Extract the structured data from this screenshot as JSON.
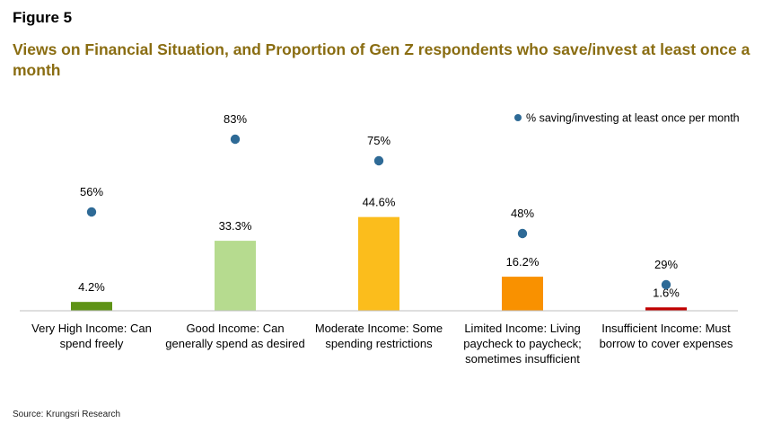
{
  "figure_label": "Figure 5",
  "title": "Views on Financial Situation, and Proportion of Gen Z respondents who save/invest at least once a month",
  "source": "Source: Krungsri Research",
  "colors": {
    "title": "#8a6d12",
    "dot": "#2e6a96",
    "baseline": "#bfbfbf"
  },
  "chart_data": {
    "type": "bar",
    "categories": [
      "Very High Income: Can spend freely",
      "Good Income: Can generally spend as desired",
      "Moderate Income: Some spending restrictions",
      "Limited Income: Living paycheck to paycheck; sometimes insufficient",
      "Insufficient Income: Must borrow to cover expenses"
    ],
    "category_lines": [
      [
        "Very High Income: Can",
        "spend freely"
      ],
      [
        "Good Income: Can",
        "generally spend as desired"
      ],
      [
        "Moderate Income: Some",
        "spending restrictions"
      ],
      [
        "Limited Income: Living",
        "paycheck to paycheck;",
        "sometimes insufficient"
      ],
      [
        "Insufficient Income: Must",
        "borrow to cover expenses"
      ]
    ],
    "series": [
      {
        "type": "bar",
        "values": [
          4.2,
          33.3,
          44.6,
          16.2,
          1.6
        ],
        "labels": [
          "4.2%",
          "33.3%",
          "44.6%",
          "16.2%",
          "1.6%"
        ],
        "colors": [
          "#5f9317",
          "#b6db8f",
          "#fbbd1c",
          "#f99100",
          "#c00000"
        ]
      },
      {
        "name": "% saving/investing at least once per month",
        "type": "scatter",
        "values": [
          56,
          83,
          75,
          48,
          29
        ],
        "labels": [
          "56%",
          "83%",
          "75%",
          "48%",
          "29%"
        ]
      }
    ],
    "legend": {
      "position": "top-right"
    },
    "grid": false
  }
}
